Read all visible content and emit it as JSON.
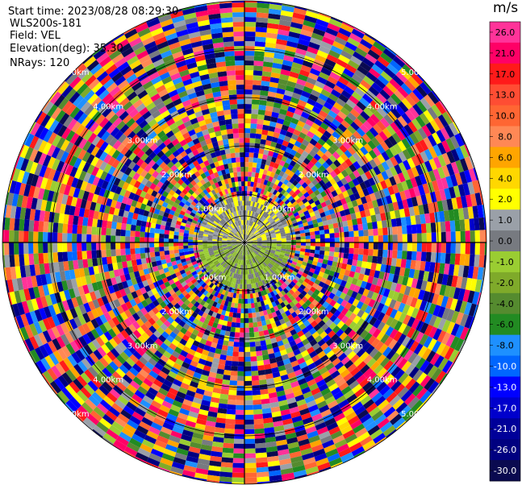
{
  "info": {
    "start_time": "Start time: 2023/08/28 08:29:30",
    "instrument": "WLS200s-181",
    "field": "Field: VEL",
    "elevation": "Elevation(deg): 35.30",
    "nrays": "NRays: 120"
  },
  "colorbar": {
    "unit": "m/s",
    "labels": [
      "26.0",
      "21.0",
      "17.0",
      "13.0",
      "10.0",
      "8.0",
      "6.0",
      "4.0",
      "2.0",
      "1.0",
      "0.0",
      "-1.0",
      "-2.0",
      "-4.0",
      "-6.0",
      "-8.0",
      "-10.0",
      "-13.0",
      "-17.0",
      "-21.0",
      "-26.0",
      "-30.0"
    ],
    "colors": [
      "#ff3399",
      "#ff0066",
      "#ff1a1a",
      "#ff4d33",
      "#ff6633",
      "#ff8855",
      "#ffa500",
      "#ffd700",
      "#ffff00",
      "#9aa0a8",
      "#777a80",
      "#9acd32",
      "#7faa2a",
      "#558b2f",
      "#228b22",
      "#1e90ff",
      "#0066ff",
      "#0000ff",
      "#0000cc",
      "#000099",
      "#000080",
      "#0a0a50"
    ]
  },
  "chart_data": {
    "type": "heatmap",
    "projection": "polar PPI scan",
    "field": "VEL",
    "nrays": 120,
    "range_rings": [
      "1.00km",
      "2.00km",
      "3.00km",
      "4.00km",
      "5.00km"
    ],
    "color_scale": {
      "min": -30.0,
      "max": 26.0,
      "unit": "m/s"
    },
    "near_field_ring_km": 1.0,
    "note_values": "near range ~0-1.6 km shows low velocities (-2 to 2 m/s); farther gates noisy across full scale"
  }
}
